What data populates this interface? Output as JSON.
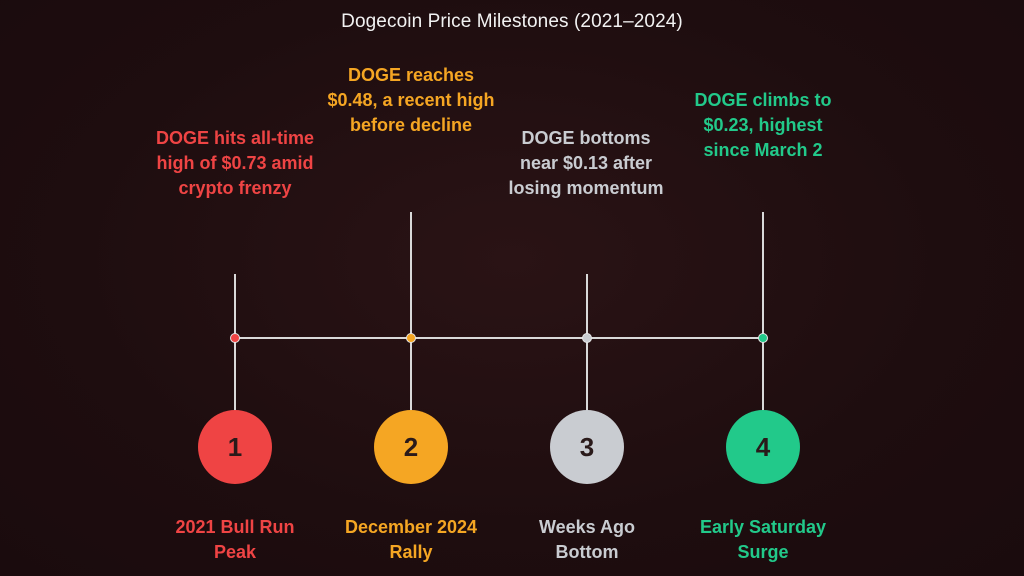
{
  "title": "Dogecoin Price Milestones (2021–2024)",
  "milestones": [
    {
      "number": "1",
      "event": "DOGE hits all-time high of $0.73 amid crypto frenzy",
      "label": "2021 Bull Run Peak",
      "color": "#ef4444"
    },
    {
      "number": "2",
      "event": "DOGE reaches $0.48, a recent high before decline",
      "label": "December 2024 Rally",
      "color": "#f5a623"
    },
    {
      "number": "3",
      "event": "DOGE bottoms near $0.13 after losing momentum",
      "label": "Weeks Ago Bottom",
      "color": "#c9ccd1"
    },
    {
      "number": "4",
      "event": "DOGE climbs to $0.23, highest since March 2",
      "label": "Early Saturday Surge",
      "color": "#22c98a"
    }
  ]
}
